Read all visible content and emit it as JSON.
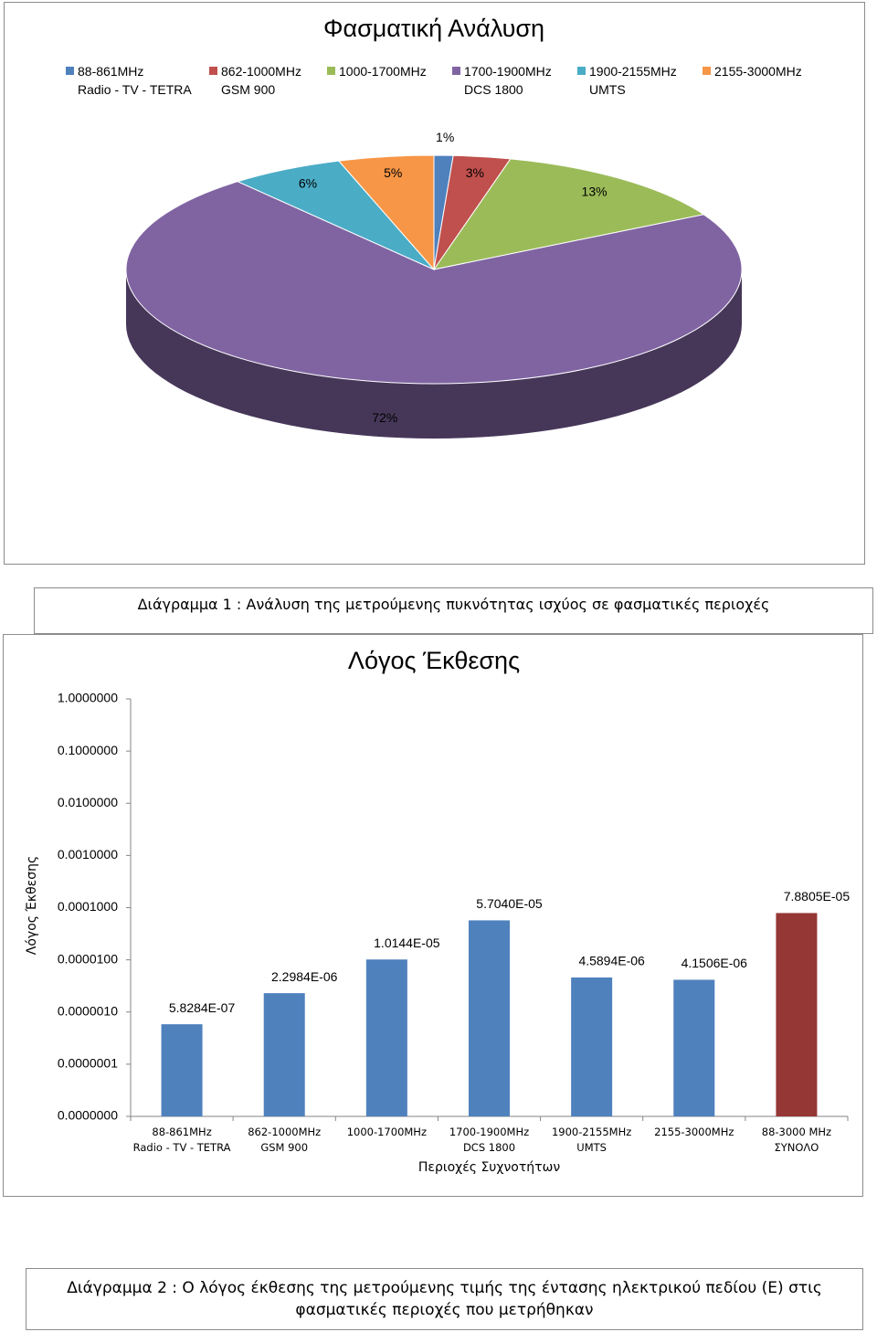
{
  "chart_data": [
    {
      "type": "pie",
      "title": "Φασματική Ανάλυση",
      "categories": [
        "88-861MHz\nRadio - TV - TETRA",
        "862-1000MHz\nGSM 900",
        "1000-1700MHz",
        "1700-1900MHz\nDCS 1800",
        "1900-2155MHz\nUMTS",
        "2155-3000MHz"
      ],
      "values": [
        1,
        3,
        13,
        72,
        6,
        5
      ],
      "value_labels": [
        "1%",
        "3%",
        "13%",
        "72%",
        "6%",
        "5%"
      ],
      "colors": [
        "#4f81bd",
        "#c0504d",
        "#9bbb59",
        "#8064a2",
        "#4bacc6",
        "#f79646"
      ],
      "legend": "top"
    },
    {
      "type": "bar",
      "title": "Λόγος Έκθεσης",
      "xlabel": "Περιοχές Συχνοτήτων",
      "ylabel": "Λόγος Έκθεσης",
      "categories": [
        "88-861MHz\nRadio - TV - TETRA",
        "862-1000MHz\nGSM 900",
        "1000-1700MHz",
        "1700-1900MHz\nDCS 1800",
        "1900-2155MHz\nUMTS",
        "2155-3000MHz",
        "88-3000 MHz\nΣΥΝΟΛΟ"
      ],
      "values": [
        5.8284e-07,
        2.2984e-06,
        1.0144e-05,
        5.704e-05,
        4.5894e-06,
        4.1506e-06,
        7.8805e-05
      ],
      "value_labels": [
        "5.8284E-07",
        "2.2984E-06",
        "1.0144E-05",
        "5.7040E-05",
        "4.5894E-06",
        "4.1506E-06",
        "7.8805E-05"
      ],
      "colors": [
        "#4f81bd",
        "#4f81bd",
        "#4f81bd",
        "#4f81bd",
        "#4f81bd",
        "#4f81bd",
        "#953735"
      ],
      "log_scale": true,
      "ylim": [
        1e-08,
        1
      ],
      "yticks": [
        {
          "value": 1e-08,
          "label": "0.0000000"
        },
        {
          "value": 1e-07,
          "label": "0.0000001"
        },
        {
          "value": 1e-06,
          "label": "0.0000010"
        },
        {
          "value": 1e-05,
          "label": "0.0000100"
        },
        {
          "value": 0.0001,
          "label": "0.0001000"
        },
        {
          "value": 0.001,
          "label": "0.0010000"
        },
        {
          "value": 0.01,
          "label": "0.0100000"
        },
        {
          "value": 0.1,
          "label": "0.1000000"
        },
        {
          "value": 1,
          "label": "1.0000000"
        }
      ]
    }
  ],
  "captions": [
    "Διάγραμμα 1 : Ανάλυση της μετρούμενης πυκνότητας ισχύος σε φασματικές περιοχές",
    "Διάγραμμα 2 : Ο λόγος έκθεσης της μετρούμενης τιμής της έντασης ηλεκτρικού πεδίου (Ε) στις φασματικές περιοχές που μετρήθηκαν"
  ]
}
